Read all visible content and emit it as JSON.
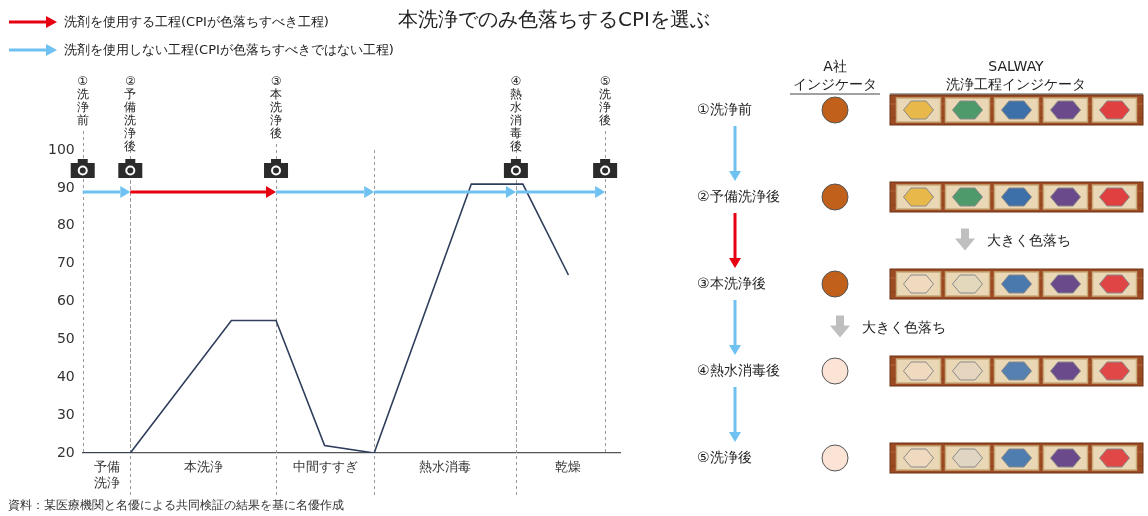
{
  "chart_data": {
    "type": "line",
    "title": "本洗浄でのみ色落ちするCPIを選ぶ",
    "x": [
      0,
      48,
      150,
      195,
      244,
      294,
      392,
      444,
      490
    ],
    "values": [
      20,
      20,
      55,
      55,
      22,
      20,
      91,
      91,
      67
    ],
    "color": "#2f3e5c",
    "xlim": [
      0,
      542
    ],
    "ylim": [
      20,
      100
    ],
    "yticks": [
      20,
      30,
      40,
      50,
      60,
      70,
      80,
      90,
      100
    ],
    "grid": false,
    "tick_labels": "y",
    "legend": "top-left",
    "phases": [
      {
        "label": "予備洗浄",
        "start": 0,
        "end": 48
      },
      {
        "label": "本洗浄",
        "start": 48,
        "end": 195
      },
      {
        "label": "中間すすぎ",
        "start": 195,
        "end": 294
      },
      {
        "label": "熱水消毒",
        "start": 294,
        "end": 437
      },
      {
        "label": "乾燥",
        "start": 437,
        "end": 542
      }
    ],
    "checkpoints": [
      {
        "label": "①洗浄前",
        "x": 0
      },
      {
        "label": "②予備洗浄後",
        "x": 48
      },
      {
        "label": "③本洗浄後",
        "x": 195
      },
      {
        "label": "④熱水消毒後",
        "x": 437
      },
      {
        "label": "⑤洗浄後",
        "x": 527
      }
    ],
    "process_arrows": [
      {
        "from": 0,
        "to": 48,
        "color": "#6ec1f0"
      },
      {
        "from": 48,
        "to": 195,
        "color": "#e60012"
      },
      {
        "from": 195,
        "to": 294,
        "color": "#6ec1f0"
      },
      {
        "from": 294,
        "to": 437,
        "color": "#6ec1f0"
      },
      {
        "from": 437,
        "to": 527,
        "color": "#6ec1f0"
      }
    ],
    "arrow_legend": [
      {
        "label": "洗剤を使用する工程(CPIが色落ちすべき工程)",
        "color": "#e60012"
      },
      {
        "label": "洗剤を使用しない工程(CPIが色落ちすべきではない工程)",
        "color": "#6ec1f0"
      }
    ]
  },
  "indicator_table": {
    "rows": [
      "①洗浄前",
      "②予備洗浄後",
      "③本洗浄後",
      "④熱水消毒後",
      "⑤洗浄後"
    ],
    "transition_colors": [
      "#6ec1f0",
      "#e60012",
      "#6ec1f0",
      "#6ec1f0"
    ],
    "columns": [
      {
        "header": "A社\nインジケータ",
        "colors": [
          "#c0601a",
          "#c0601a",
          "#c0601a",
          "#fbe4d6",
          "#fbe4d6"
        ],
        "notes": [
          null,
          null,
          "大きく色落ち",
          null
        ]
      },
      {
        "header": "SALWAY\n洗浄工程インジケータ",
        "colors": [
          [
            "#e8b84a",
            "#4f9a6a",
            "#3d6fa8",
            "#6a4a8a",
            "#e04040"
          ],
          [
            "#e8b84a",
            "#4f9a6a",
            "#3d6fa8",
            "#6a4a8a",
            "#e04040"
          ],
          [
            "#efd9bf",
            "#e3d7bc",
            "#4a79ad",
            "#6b4a8c",
            "#e04545"
          ],
          [
            "#efd9bf",
            "#e6d6bf",
            "#5580b0",
            "#6b4a8c",
            "#e04848"
          ],
          [
            "#efd9bf",
            "#e0d5c2",
            "#4f7db0",
            "#6b4a8c",
            "#e04848"
          ]
        ],
        "notes": [
          null,
          "大きく色落ち",
          null,
          null
        ]
      }
    ]
  },
  "source": "資料：某医療機関と名優による共同検証の結果を基に名優作成"
}
